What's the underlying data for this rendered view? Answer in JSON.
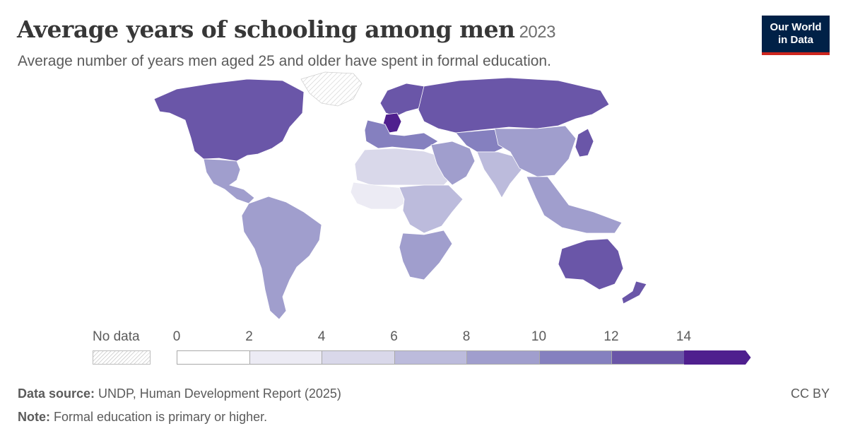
{
  "header": {
    "title": "Average years of schooling among men",
    "year": "2023",
    "subtitle": "Average number of years men aged 25 and older have spent in formal education.",
    "logo_line1": "Our World",
    "logo_line2": "in Data"
  },
  "legend": {
    "no_data_label": "No data",
    "ticks": [
      "0",
      "2",
      "4",
      "6",
      "8",
      "10",
      "12",
      "14"
    ],
    "bins": [
      {
        "from": 0,
        "to": 2,
        "color": "#ffffff"
      },
      {
        "from": 2,
        "to": 4,
        "color": "#ecebf4"
      },
      {
        "from": 4,
        "to": 6,
        "color": "#d9d8ea"
      },
      {
        "from": 6,
        "to": 8,
        "color": "#bcbbdc"
      },
      {
        "from": 8,
        "to": 10,
        "color": "#a09ecd"
      },
      {
        "from": 10,
        "to": 12,
        "color": "#8580bf"
      },
      {
        "from": 12,
        "to": 14,
        "color": "#6a56a8"
      },
      {
        "from": 14,
        "to": null,
        "color": "#4f1f8e"
      }
    ]
  },
  "regions": [
    {
      "name": "North America",
      "bin": 6
    },
    {
      "name": "Greenland",
      "bin": null
    },
    {
      "name": "Central America",
      "bin": 4
    },
    {
      "name": "South America",
      "bin": 4
    },
    {
      "name": "Northern Europe",
      "bin": 6
    },
    {
      "name": "Germany",
      "bin": 7
    },
    {
      "name": "Southern Europe",
      "bin": 5
    },
    {
      "name": "Russia",
      "bin": 6
    },
    {
      "name": "North Africa",
      "bin": 2
    },
    {
      "name": "West Africa",
      "bin": 1
    },
    {
      "name": "Central Africa",
      "bin": 3
    },
    {
      "name": "Southern Africa",
      "bin": 4
    },
    {
      "name": "Middle East",
      "bin": 4
    },
    {
      "name": "Central Asia",
      "bin": 5
    },
    {
      "name": "South Asia",
      "bin": 3
    },
    {
      "name": "China",
      "bin": 4
    },
    {
      "name": "Japan",
      "bin": 6
    },
    {
      "name": "Southeast Asia",
      "bin": 4
    },
    {
      "name": "Australia",
      "bin": 6
    },
    {
      "name": "New Zealand",
      "bin": 6
    }
  ],
  "footer": {
    "source_label": "Data source:",
    "source_text": " UNDP, Human Development Report (2025)",
    "note_label": "Note:",
    "note_text": " Formal education is primary or higher.",
    "license": "CC BY"
  }
}
